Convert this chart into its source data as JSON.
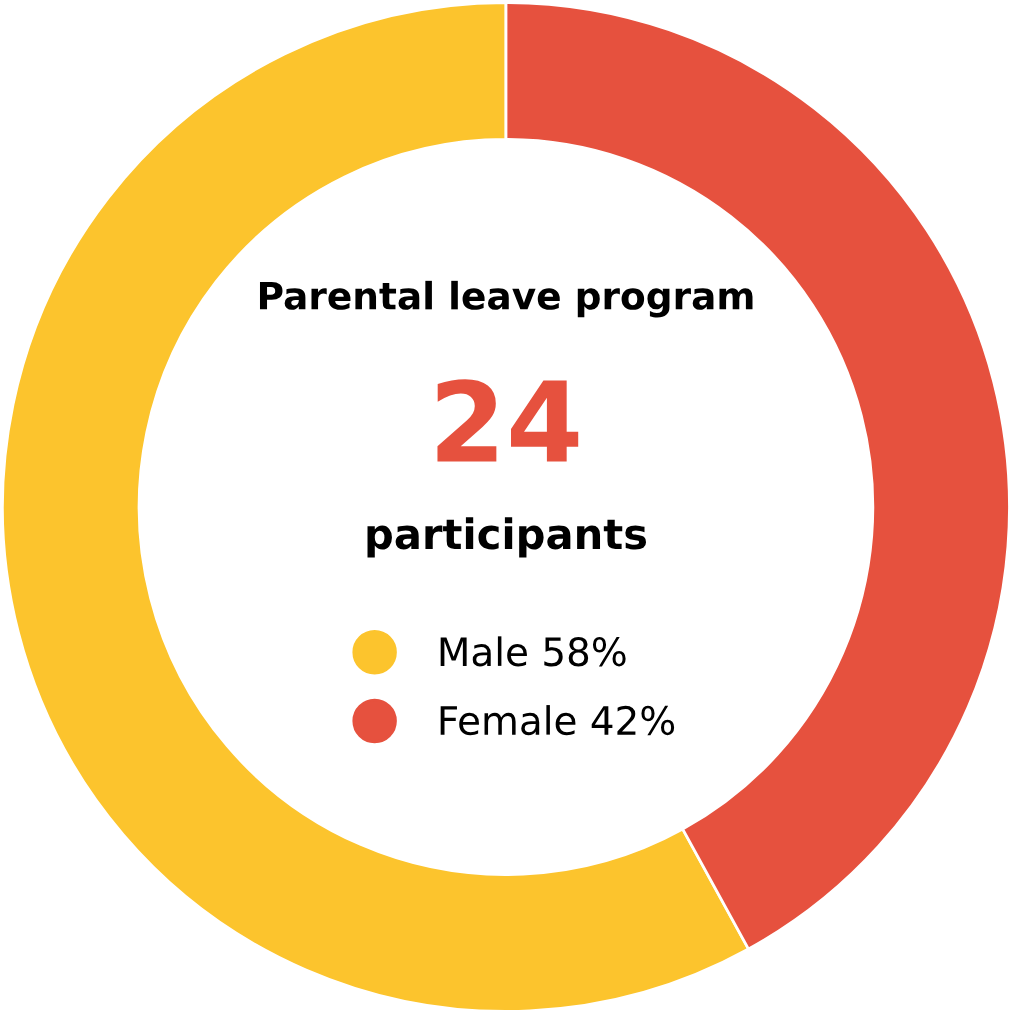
{
  "chart_data": {
    "type": "donut",
    "title": "Parental leave program",
    "annotations": [
      "24",
      "participants"
    ],
    "categories": [
      "Male",
      "Female"
    ],
    "values": [
      58,
      42
    ],
    "colors": [
      "#fcc42d",
      "#e6513e"
    ],
    "value_labels": [
      "58%",
      "42%"
    ],
    "legend": "center"
  }
}
